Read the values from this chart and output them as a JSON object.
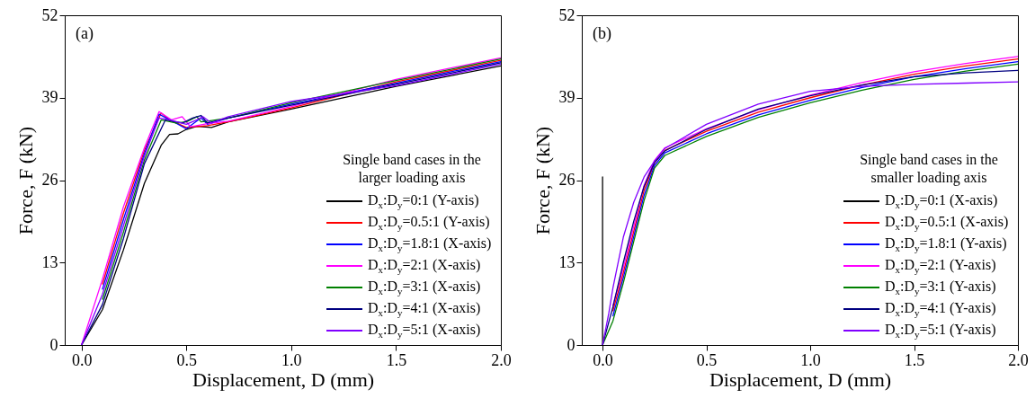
{
  "chart_data": [
    {
      "type": "line",
      "xlabel": "Displacement, D (mm)",
      "ylabel": "Force, F (kN)",
      "xlim": [
        -0.08,
        2.0
      ],
      "ylim": [
        0,
        52
      ],
      "xticks": [
        {
          "value": 0,
          "label": "0.0"
        },
        {
          "value": 0.5,
          "label": "0.5"
        },
        {
          "value": 1,
          "label": "1.0"
        },
        {
          "value": 1.5,
          "label": "1.5"
        },
        {
          "value": 2,
          "label": "2.0"
        }
      ],
      "yticks": [
        0,
        13,
        26,
        39,
        52
      ],
      "grid": false,
      "legend": "bottom right",
      "legend_title": "Single band cases in the larger loading axis",
      "annotations": [
        "(a)"
      ],
      "series": [
        {
          "name": "D$_{x}$:D$_{y}$=0:1 (Y-axis)",
          "color": "#000000",
          "x": [
            0,
            0.1,
            0.2,
            0.3,
            0.38,
            0.42,
            0.46,
            0.5,
            0.55,
            0.62,
            0.7,
            1.0,
            1.5,
            2.0
          ],
          "values": [
            0,
            5.6,
            15,
            25.5,
            31.5,
            33.2,
            33.3,
            34,
            34.5,
            34.3,
            35.2,
            37.2,
            40.8,
            44
          ]
        },
        {
          "name": "D$_{x}$:D$_{y}$=0.5:1 (Y-axis)",
          "color": "#ff0000",
          "x": [
            0.1,
            0.2,
            0.3,
            0.38,
            0.42,
            0.5,
            0.6,
            0.7,
            1.0,
            1.5,
            2.0
          ],
          "values": [
            9.6,
            20.8,
            30.7,
            36.6,
            35.5,
            34.3,
            34.6,
            35.2,
            37.4,
            41.5,
            44.9
          ]
        },
        {
          "name": "D$_{x}$:D$_{y}$=1.8:1 (X-axis)",
          "color": "#0000ff",
          "x": [
            0.1,
            0.2,
            0.3,
            0.37,
            0.45,
            0.5,
            0.57,
            0.6,
            0.7,
            1.0,
            1.5,
            2.0
          ],
          "values": [
            8.8,
            19.8,
            30.2,
            36.4,
            35,
            34.1,
            35.8,
            34.8,
            35.8,
            38,
            41.3,
            44.7
          ]
        },
        {
          "name": "D$_{x}$:D$_{y}$=2:1 (X-axis)",
          "color": "#ff00ff",
          "x": [
            0,
            0.1,
            0.2,
            0.3,
            0.37,
            0.43,
            0.48,
            0.52,
            0.6,
            0.7,
            1.0,
            1.5,
            2.0
          ],
          "values": [
            0,
            10.4,
            21.8,
            31.1,
            36.8,
            35.5,
            36,
            34.4,
            34.9,
            35.3,
            37.6,
            41.9,
            45.3
          ]
        },
        {
          "name": "D$_{x}$:D$_{y}$=3:1 (X-axis)",
          "color": "#008000",
          "x": [
            0.1,
            0.2,
            0.3,
            0.38,
            0.45,
            0.5,
            0.55,
            0.57,
            0.6,
            0.7,
            1.0,
            1.5,
            2.0
          ],
          "values": [
            7.2,
            17.8,
            29.2,
            35.5,
            35,
            35.2,
            36,
            35.2,
            35.3,
            35.8,
            38.2,
            41.7,
            45.1
          ]
        },
        {
          "name": "D$_{x}$:D$_{y}$=4:1 (X-axis)",
          "color": "#000080",
          "x": [
            0,
            0.1,
            0.2,
            0.3,
            0.4,
            0.48,
            0.53,
            0.57,
            0.6,
            0.7,
            1.0,
            1.5,
            2.0
          ],
          "values": [
            0,
            6.4,
            16.8,
            28.6,
            35.5,
            35,
            35.8,
            36.2,
            35,
            35.8,
            37.8,
            41.1,
            44.5
          ]
        },
        {
          "name": "D$_{x}$:D$_{y}$=5:1 (X-axis)",
          "color": "#8000ff",
          "x": [
            0,
            0.1,
            0.2,
            0.3,
            0.37,
            0.42,
            0.5,
            0.55,
            0.58,
            0.62,
            0.7,
            1.0,
            1.5,
            2.0
          ],
          "values": [
            0,
            8,
            18.8,
            29.8,
            35.8,
            35.5,
            34.8,
            35.5,
            36,
            35,
            36,
            38.4,
            40.9,
            44.3
          ]
        }
      ]
    },
    {
      "type": "line",
      "xlabel": "Displacement, D (mm)",
      "ylabel": "Force, F (kN)",
      "xlim": [
        -0.1,
        2.0
      ],
      "ylim": [
        0,
        52
      ],
      "xticks": [
        {
          "value": 0,
          "label": "0.0"
        },
        {
          "value": 0.5,
          "label": "0.5"
        },
        {
          "value": 1,
          "label": "1.0"
        },
        {
          "value": 1.5,
          "label": "1.5"
        },
        {
          "value": 2,
          "label": "2.0"
        }
      ],
      "yticks": [
        0,
        13,
        26,
        39,
        52
      ],
      "grid": false,
      "legend": "bottom right",
      "legend_title": "Single band cases in the smaller loading axis",
      "annotations": [
        "(b)"
      ],
      "series": [
        {
          "name": "D$_{x}$:D$_{y}$=0:1 (X-axis)",
          "color": "#000000",
          "x": [
            0,
            0
          ],
          "values": [
            0,
            26.5
          ]
        },
        {
          "name": "D$_{x}$:D$_{y}$=0.5:1 (X-axis)",
          "color": "#ff0000",
          "x": [
            0.05,
            0.1,
            0.15,
            0.2,
            0.25,
            0.3,
            0.5,
            0.75,
            1.0,
            1.25,
            1.5,
            1.75,
            2.0
          ],
          "values": [
            5.4,
            11.4,
            17.9,
            24.4,
            28.7,
            30.7,
            33.7,
            36.7,
            39,
            41,
            42.7,
            44,
            45.1
          ]
        },
        {
          "name": "D$_{x}$:D$_{y}$=1.8:1 (Y-axis)",
          "color": "#0000ff",
          "x": [
            0.05,
            0.1,
            0.15,
            0.2,
            0.25,
            0.3,
            0.5,
            0.75,
            1.0,
            1.25,
            1.5,
            1.75,
            2.0
          ],
          "values": [
            4.6,
            10.6,
            17.1,
            23.6,
            28.3,
            30.3,
            33.3,
            36.3,
            38.6,
            40.6,
            42.3,
            43.6,
            44.7
          ]
        },
        {
          "name": "D$_{x}$:D$_{y}$=2:1 (Y-axis)",
          "color": "#ff00ff",
          "x": [
            0.05,
            0.1,
            0.15,
            0.2,
            0.25,
            0.3,
            0.5,
            0.75,
            1.0,
            1.25,
            1.5,
            1.75,
            2.0
          ],
          "values": [
            6.2,
            12.2,
            18.7,
            25.2,
            29.1,
            31.1,
            34.1,
            37.1,
            39.4,
            41.4,
            43.1,
            44.4,
            45.5
          ]
        },
        {
          "name": "D$_{x}$:D$_{y}$=3:1 (Y-axis)",
          "color": "#008000",
          "x": [
            0,
            0.05,
            0.1,
            0.15,
            0.2,
            0.25,
            0.3,
            0.5,
            0.75,
            1.0,
            1.25,
            1.5,
            1.75,
            2.0
          ],
          "values": [
            0,
            3.8,
            9.8,
            16.3,
            22.8,
            27.9,
            29.9,
            32.9,
            35.9,
            38.2,
            40.2,
            41.9,
            43.2,
            44.3
          ]
        },
        {
          "name": "D$_{x}$:D$_{y}$=4:1 (Y-axis)",
          "color": "#000080",
          "x": [
            0,
            0.05,
            0.1,
            0.15,
            0.2,
            0.25,
            0.3,
            0.5,
            0.75,
            1.0,
            1.25,
            1.5,
            1.75,
            2.0
          ],
          "values": [
            0,
            6,
            13,
            19.5,
            25,
            28.8,
            30.6,
            34,
            37.2,
            39.3,
            41,
            42.3,
            42.9,
            43.3
          ]
        },
        {
          "name": "D$_{x}$:D$_{y}$=5:1 (Y-axis)",
          "color": "#8000ff",
          "x": [
            0,
            0.03,
            0.05,
            0.1,
            0.15,
            0.2,
            0.25,
            0.3,
            0.5,
            0.75,
            1.0,
            1.25,
            1.5,
            1.75,
            2.0
          ],
          "values": [
            0,
            5,
            9,
            17,
            22.5,
            26.5,
            29,
            31,
            34.8,
            38,
            40,
            40.8,
            41.1,
            41.3,
            41.5
          ]
        }
      ]
    }
  ]
}
